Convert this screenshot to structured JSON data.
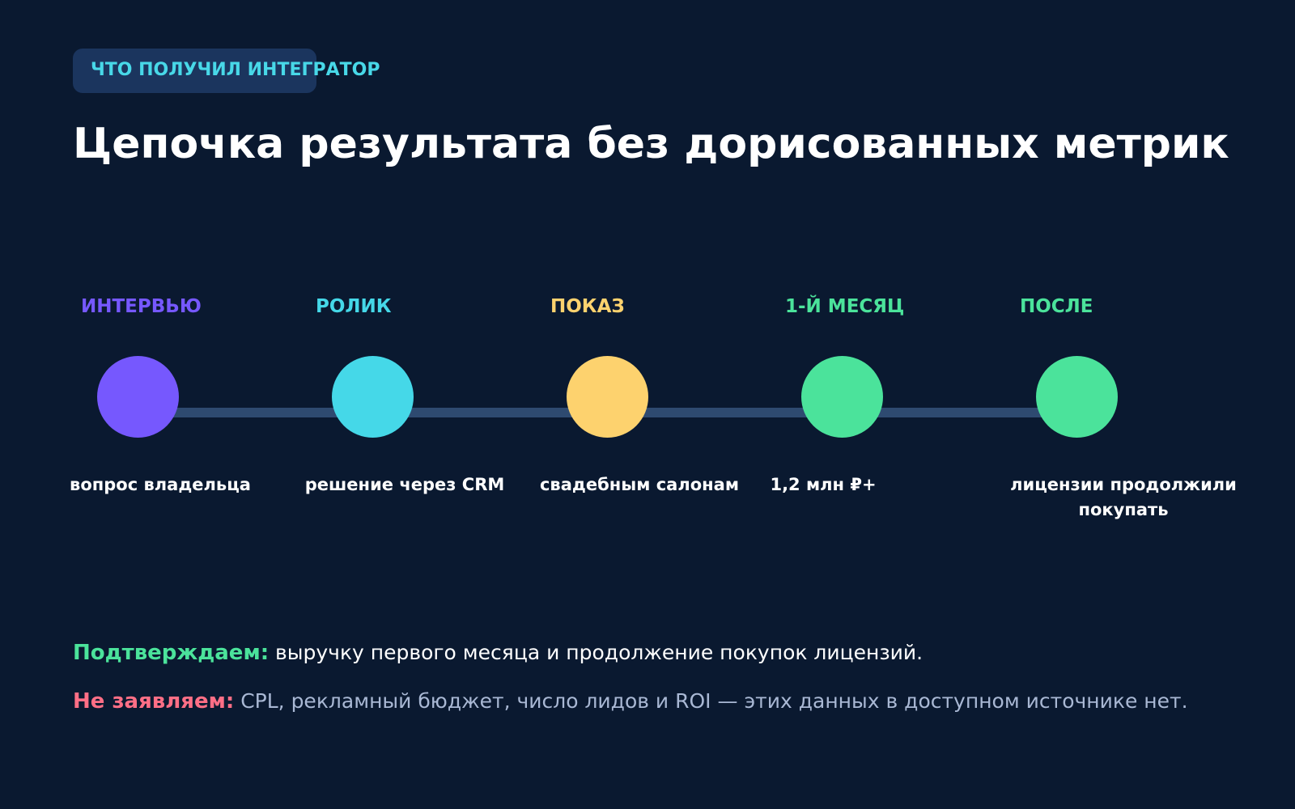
{
  "header": {
    "badge": "ЧТО ПОЛУЧИЛ ИНТЕГРАТОР",
    "title": "Цепочка результата без дорисованных метрик"
  },
  "timeline": {
    "steps": [
      {
        "label": "ИНТЕРВЬЮ",
        "description": "вопрос владельца",
        "color": "#7658fe"
      },
      {
        "label": "РОЛИК",
        "description": "решение через CRM",
        "color": "#45d8e8"
      },
      {
        "label": "ПОКАЗ",
        "description": "свадебным салонам",
        "color": "#fdd26e"
      },
      {
        "label": "1-Й МЕСЯЦ",
        "description": "1,2 млн ₽+",
        "color": "#4be39b"
      },
      {
        "label": "ПОСЛЕ",
        "description": "лицензии продолжили покупать",
        "color": "#4be39b"
      }
    ],
    "connector_color": "#2e4a70"
  },
  "notes": {
    "confirm": {
      "key": "Подтверждаем:",
      "text": " выручку первого месяца и продолжение покупок лицензий."
    },
    "deny": {
      "key": "Не заявляем:",
      "text": " CPL, рекламный бюджет, число лидов и ROI — этих данных в доступном источнике нет."
    }
  }
}
